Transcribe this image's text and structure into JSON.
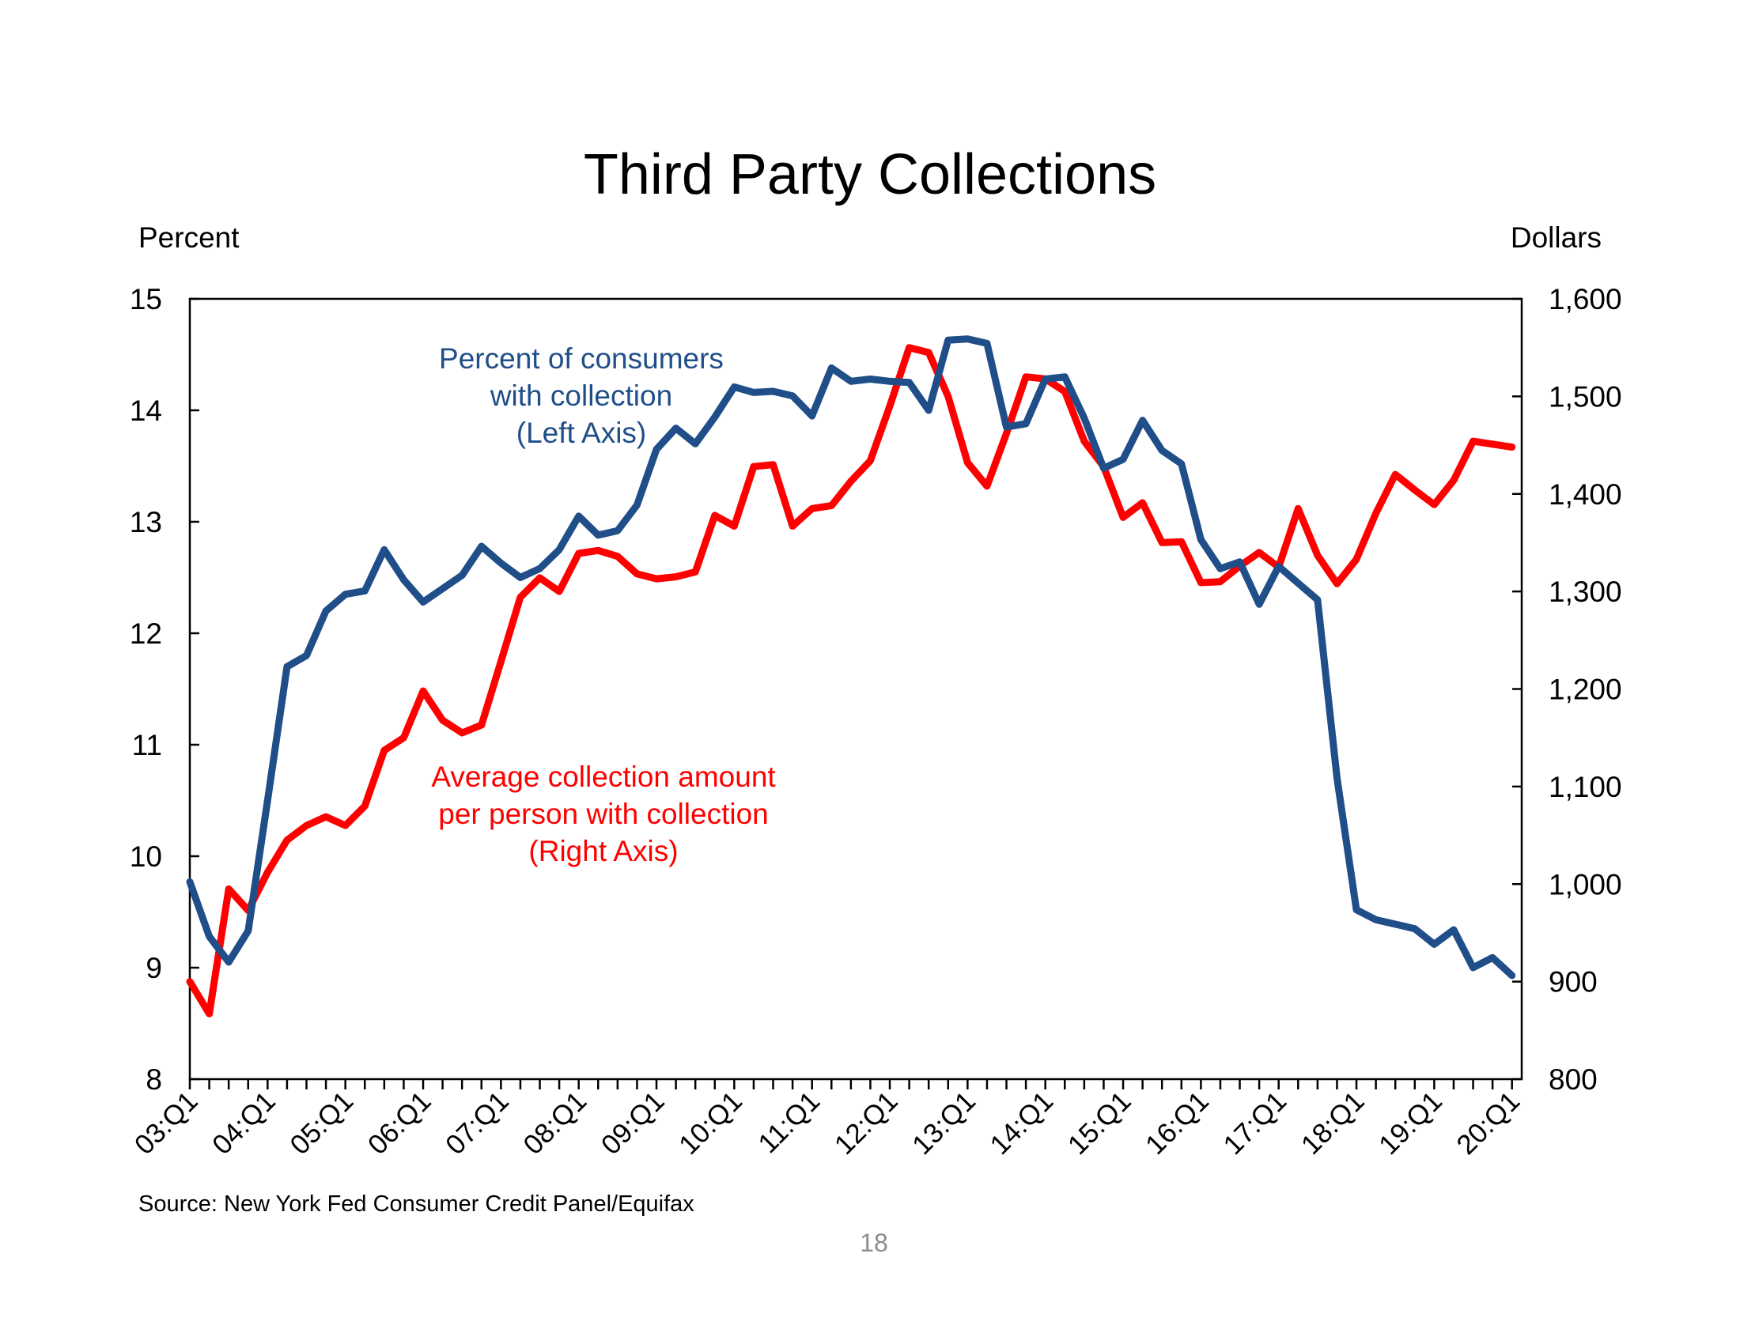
{
  "page_number": "18",
  "chart_data": {
    "type": "line",
    "title": "Third Party Collections",
    "source": "Source: New York Fed Consumer Credit Panel/Equifax",
    "left_axis": {
      "title": "Percent",
      "range": [
        8,
        15
      ],
      "ticks": [
        "15",
        "14",
        "13",
        "12",
        "11",
        "10",
        "9",
        "8"
      ]
    },
    "right_axis": {
      "title": "Dollars",
      "range": [
        800,
        1600
      ],
      "ticks": [
        "1,600",
        "1,500",
        "1,400",
        "1,300",
        "1,200",
        "1,100",
        "1,000",
        "900",
        "800"
      ]
    },
    "x_labels": [
      "03:Q1",
      "04:Q1",
      "05:Q1",
      "06:Q1",
      "07:Q1",
      "08:Q1",
      "09:Q1",
      "10:Q1",
      "11:Q1",
      "12:Q1",
      "13:Q1",
      "14:Q1",
      "15:Q1",
      "16:Q1",
      "17:Q1",
      "18:Q1",
      "19:Q1",
      "20:Q1"
    ],
    "grid": false,
    "colors": {
      "percent": "#1f4e89",
      "amount": "#ff0000",
      "axis": "#000000"
    },
    "series": [
      {
        "name": "Percent of consumers with collection (Left Axis)",
        "axis": "left",
        "label_lines": [
          "Percent of consumers",
          "with collection",
          "(Left Axis)"
        ],
        "values": [
          9.77,
          9.28,
          9.05,
          9.33,
          10.5,
          11.7,
          11.8,
          12.2,
          12.35,
          12.38,
          12.75,
          12.48,
          12.28,
          12.4,
          12.52,
          12.78,
          12.63,
          12.5,
          12.58,
          12.75,
          13.05,
          12.88,
          12.92,
          13.15,
          13.65,
          13.84,
          13.7,
          13.94,
          14.21,
          14.16,
          14.17,
          14.13,
          13.95,
          14.38,
          14.26,
          14.28,
          14.26,
          14.25,
          14.0,
          14.63,
          14.64,
          14.6,
          13.85,
          13.88,
          14.28,
          14.3,
          13.93,
          13.48,
          13.56,
          13.91,
          13.64,
          13.52,
          12.84,
          12.58,
          12.64,
          12.26,
          12.6,
          12.45,
          12.3,
          10.7,
          9.52,
          9.43,
          9.39,
          9.35,
          9.21,
          9.34,
          9.0,
          9.09,
          8.93
        ]
      },
      {
        "name": "Average collection amount per person with collection (Right Axis)",
        "axis": "right",
        "label_lines": [
          "Average collection amount",
          "per person with collection",
          "(Right Axis)"
        ],
        "values": [
          900,
          867,
          995,
          973,
          1012,
          1045,
          1060,
          1069,
          1060,
          1080,
          1137,
          1150,
          1198,
          1168,
          1155,
          1163,
          1228,
          1294,
          1314,
          1300,
          1339,
          1342,
          1336,
          1318,
          1313,
          1315,
          1320,
          1378,
          1367,
          1428,
          1430,
          1367,
          1385,
          1388,
          1413,
          1434,
          1490,
          1550,
          1545,
          1500,
          1432,
          1408,
          1462,
          1520,
          1518,
          1505,
          1454,
          1428,
          1376,
          1391,
          1350,
          1351,
          1309,
          1310,
          1326,
          1340,
          1325,
          1385,
          1337,
          1308,
          1333,
          1380,
          1420,
          1404,
          1389,
          1414,
          1454,
          1451,
          1448
        ]
      }
    ]
  }
}
